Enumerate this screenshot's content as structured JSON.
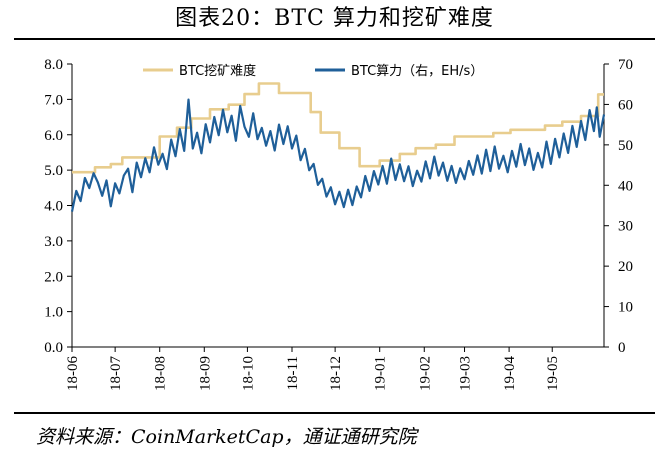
{
  "title": "图表20：BTC 算力和挖矿难度",
  "source": "资料来源：CoinMarketCap，通证通研究院",
  "chart_data": {
    "type": "line",
    "x_labels": [
      "18-06",
      "18-07",
      "18-08",
      "18-09",
      "18-10",
      "18-11",
      "18-12",
      "19-01",
      "19-02",
      "19-03",
      "19-04",
      "19-05"
    ],
    "y_left": {
      "lim": [
        0,
        8
      ],
      "ticks": [
        "0.0",
        "1.0",
        "2.0",
        "3.0",
        "4.0",
        "5.0",
        "6.0",
        "7.0",
        "8.0"
      ]
    },
    "y_right": {
      "lim": [
        0,
        70
      ],
      "ticks": [
        "0",
        "10",
        "20",
        "30",
        "40",
        "50",
        "60",
        "70"
      ]
    },
    "grid": false,
    "legend_position": "top",
    "series": [
      {
        "name": "BTC挖矿难度",
        "axis": "left",
        "color": "#E8CD8E",
        "step": true,
        "points": [
          [
            "2018-06-01",
            4.94
          ],
          [
            "2018-06-17",
            5.08
          ],
          [
            "2018-06-28",
            5.17
          ],
          [
            "2018-07-06",
            5.36
          ],
          [
            "2018-07-23",
            5.36
          ],
          [
            "2018-07-25",
            5.36
          ],
          [
            "2018-08-01",
            5.95
          ],
          [
            "2018-08-13",
            6.2
          ],
          [
            "2018-08-23",
            6.46
          ],
          [
            "2018-09-05",
            6.72
          ],
          [
            "2018-09-18",
            6.85
          ],
          [
            "2018-09-29",
            7.15
          ],
          [
            "2018-10-09",
            7.45
          ],
          [
            "2018-10-23",
            7.18
          ],
          [
            "2018-11-14",
            6.64
          ],
          [
            "2018-11-21",
            6.06
          ],
          [
            "2018-12-04",
            5.62
          ],
          [
            "2018-12-18",
            5.11
          ],
          [
            "2019-01-01",
            5.27
          ],
          [
            "2019-01-15",
            5.46
          ],
          [
            "2019-01-26",
            5.62
          ],
          [
            "2019-02-09",
            5.72
          ],
          [
            "2019-02-22",
            5.95
          ],
          [
            "2019-03-21",
            6.05
          ],
          [
            "2019-04-02",
            6.14
          ],
          [
            "2019-04-26",
            6.26
          ],
          [
            "2019-05-08",
            6.37
          ],
          [
            "2019-05-21",
            6.53
          ],
          [
            "2019-06-02",
            7.14
          ],
          [
            "2019-06-06",
            7.14
          ]
        ]
      },
      {
        "name": "BTC算力（右，EH/s）",
        "axis": "right",
        "color": "#1F5F99",
        "points": [
          [
            "2018-06-01",
            33.5
          ],
          [
            "2018-06-04",
            38.6
          ],
          [
            "2018-06-07",
            36.1
          ],
          [
            "2018-06-10",
            41.8
          ],
          [
            "2018-06-13",
            39.3
          ],
          [
            "2018-06-16",
            43.0
          ],
          [
            "2018-06-19",
            40.7
          ],
          [
            "2018-06-22",
            37.4
          ],
          [
            "2018-06-25",
            41.2
          ],
          [
            "2018-06-28",
            34.8
          ],
          [
            "2018-07-01",
            40.5
          ],
          [
            "2018-07-04",
            38.0
          ],
          [
            "2018-07-07",
            42.4
          ],
          [
            "2018-07-10",
            44.1
          ],
          [
            "2018-07-13",
            38.3
          ],
          [
            "2018-07-16",
            45.6
          ],
          [
            "2018-07-19",
            42.0
          ],
          [
            "2018-07-22",
            46.7
          ],
          [
            "2018-07-25",
            43.2
          ],
          [
            "2018-07-28",
            49.4
          ],
          [
            "2018-07-31",
            45.1
          ],
          [
            "2018-08-03",
            47.8
          ],
          [
            "2018-08-06",
            44.0
          ],
          [
            "2018-08-09",
            51.3
          ],
          [
            "2018-08-12",
            47.2
          ],
          [
            "2018-08-15",
            53.9
          ],
          [
            "2018-08-18",
            48.5
          ],
          [
            "2018-08-21",
            61.2
          ],
          [
            "2018-08-24",
            49.1
          ],
          [
            "2018-08-27",
            53.0
          ],
          [
            "2018-08-30",
            47.9
          ],
          [
            "2018-09-02",
            55.1
          ],
          [
            "2018-09-05",
            50.6
          ],
          [
            "2018-09-08",
            56.9
          ],
          [
            "2018-09-11",
            52.4
          ],
          [
            "2018-09-14",
            58.7
          ],
          [
            "2018-09-17",
            53.1
          ],
          [
            "2018-09-20",
            57.2
          ],
          [
            "2018-09-23",
            51.0
          ],
          [
            "2018-09-26",
            59.6
          ],
          [
            "2018-09-29",
            54.5
          ],
          [
            "2018-10-02",
            52.0
          ],
          [
            "2018-10-05",
            57.8
          ],
          [
            "2018-10-08",
            51.4
          ],
          [
            "2018-10-11",
            54.2
          ],
          [
            "2018-10-14",
            49.8
          ],
          [
            "2018-10-17",
            53.4
          ],
          [
            "2018-10-20",
            48.6
          ],
          [
            "2018-10-23",
            55.0
          ],
          [
            "2018-10-26",
            50.2
          ],
          [
            "2018-10-29",
            54.6
          ],
          [
            "2018-11-01",
            49.1
          ],
          [
            "2018-11-04",
            52.3
          ],
          [
            "2018-11-07",
            46.2
          ],
          [
            "2018-11-10",
            49.0
          ],
          [
            "2018-11-13",
            43.7
          ],
          [
            "2018-11-16",
            45.3
          ],
          [
            "2018-11-19",
            40.1
          ],
          [
            "2018-11-22",
            41.6
          ],
          [
            "2018-11-25",
            37.2
          ],
          [
            "2018-11-28",
            39.5
          ],
          [
            "2018-12-01",
            35.3
          ],
          [
            "2018-12-04",
            38.4
          ],
          [
            "2018-12-07",
            34.6
          ],
          [
            "2018-12-10",
            38.9
          ],
          [
            "2018-12-13",
            35.1
          ],
          [
            "2018-12-16",
            39.7
          ],
          [
            "2018-12-19",
            37.0
          ],
          [
            "2018-12-22",
            42.3
          ],
          [
            "2018-12-25",
            38.6
          ],
          [
            "2018-12-28",
            43.5
          ],
          [
            "2018-12-31",
            40.2
          ],
          [
            "2019-01-03",
            44.8
          ],
          [
            "2019-01-06",
            40.4
          ],
          [
            "2019-01-09",
            46.6
          ],
          [
            "2019-01-12",
            41.3
          ],
          [
            "2019-01-15",
            45.2
          ],
          [
            "2019-01-18",
            41.0
          ],
          [
            "2019-01-21",
            44.7
          ],
          [
            "2019-01-24",
            39.8
          ],
          [
            "2019-01-27",
            43.6
          ],
          [
            "2019-01-30",
            40.9
          ],
          [
            "2019-02-02",
            45.9
          ],
          [
            "2019-02-05",
            41.7
          ],
          [
            "2019-02-08",
            47.1
          ],
          [
            "2019-02-11",
            42.4
          ],
          [
            "2019-02-14",
            45.6
          ],
          [
            "2019-02-17",
            41.1
          ],
          [
            "2019-02-20",
            44.8
          ],
          [
            "2019-02-23",
            40.6
          ],
          [
            "2019-02-26",
            44.2
          ],
          [
            "2019-03-01",
            41.5
          ],
          [
            "2019-03-04",
            46.0
          ],
          [
            "2019-03-07",
            42.6
          ],
          [
            "2019-03-10",
            47.4
          ],
          [
            "2019-03-13",
            42.9
          ],
          [
            "2019-03-16",
            48.8
          ],
          [
            "2019-03-19",
            43.5
          ],
          [
            "2019-03-22",
            49.6
          ],
          [
            "2019-03-25",
            44.1
          ],
          [
            "2019-03-28",
            47.3
          ],
          [
            "2019-03-31",
            43.2
          ],
          [
            "2019-04-03",
            48.5
          ],
          [
            "2019-04-06",
            44.6
          ],
          [
            "2019-04-09",
            50.2
          ],
          [
            "2019-04-12",
            45.0
          ],
          [
            "2019-04-15",
            49.1
          ],
          [
            "2019-04-18",
            43.8
          ],
          [
            "2019-04-21",
            48.0
          ],
          [
            "2019-04-24",
            44.4
          ],
          [
            "2019-04-27",
            50.8
          ],
          [
            "2019-04-30",
            45.3
          ],
          [
            "2019-05-03",
            51.5
          ],
          [
            "2019-05-06",
            46.9
          ],
          [
            "2019-05-09",
            52.8
          ],
          [
            "2019-05-12",
            48.0
          ],
          [
            "2019-05-15",
            54.7
          ],
          [
            "2019-05-18",
            49.5
          ],
          [
            "2019-05-21",
            55.9
          ],
          [
            "2019-05-24",
            51.2
          ],
          [
            "2019-05-27",
            58.6
          ],
          [
            "2019-05-30",
            53.4
          ],
          [
            "2019-06-01",
            59.3
          ],
          [
            "2019-06-03",
            52.0
          ],
          [
            "2019-06-06",
            57.5
          ]
        ]
      }
    ]
  }
}
